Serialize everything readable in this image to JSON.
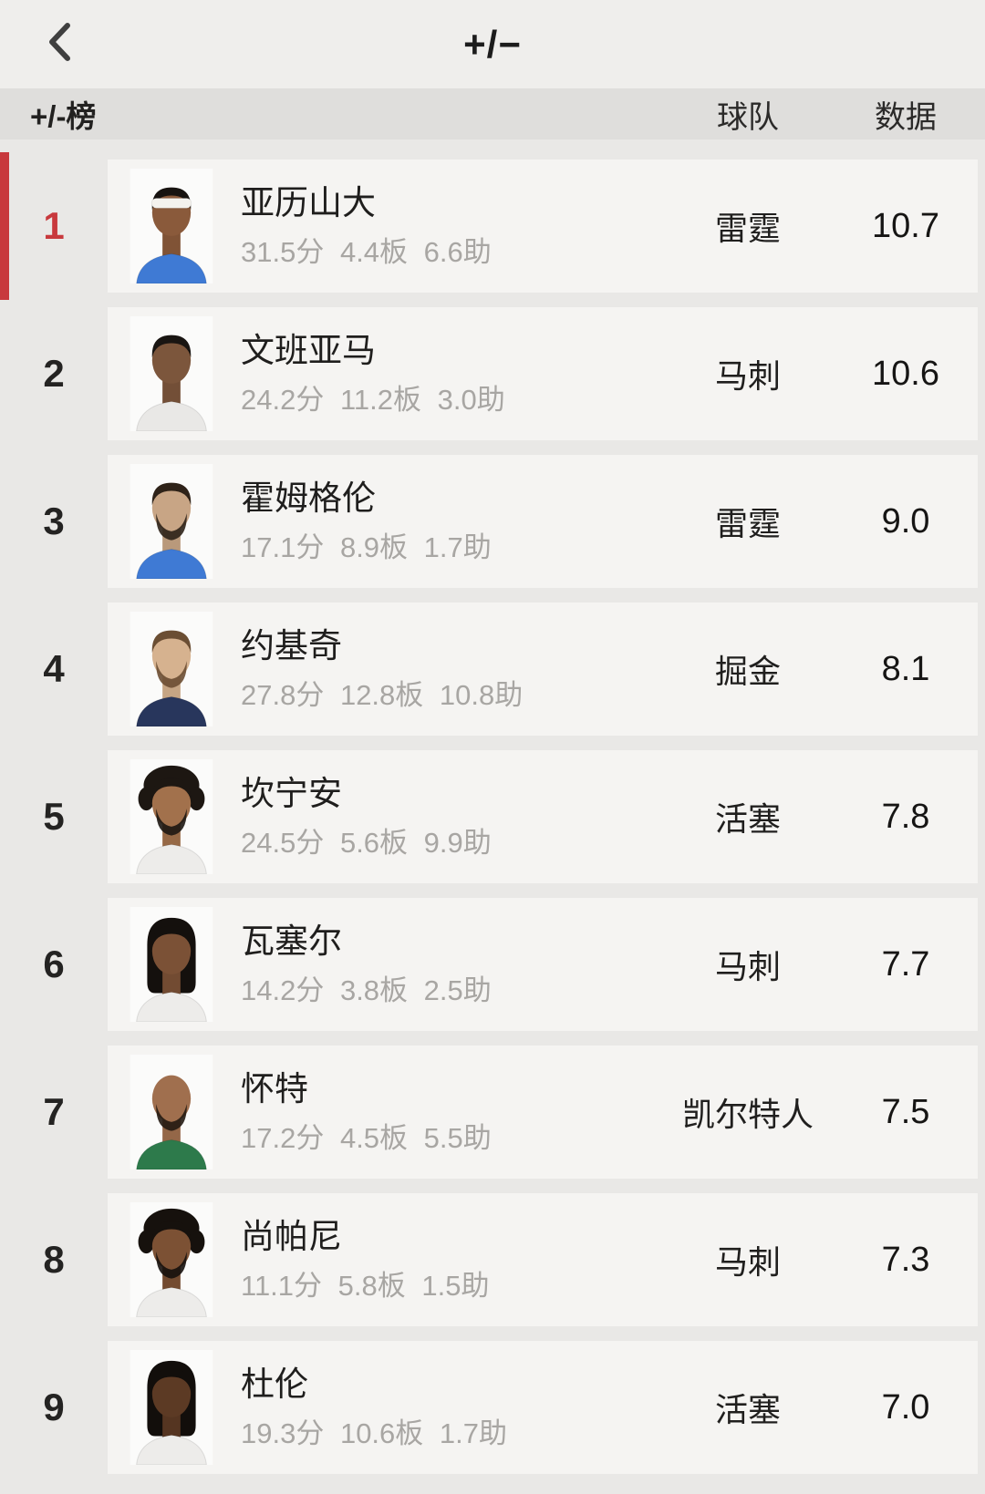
{
  "colors": {
    "accent_red": "#c8393d",
    "appbar_bg": "#efeeec",
    "header_band_bg": "#dfdedc",
    "card_bg": "#f5f4f2",
    "page_bg": "#e9e8e6",
    "stats_gray": "#a8a6a3"
  },
  "nav": {
    "title": "+/−"
  },
  "table": {
    "rank_header": "+/-榜",
    "team_header": "球队",
    "value_header": "数据"
  },
  "rows": [
    {
      "rank": "1",
      "name": "亚历山大",
      "stats": "31.5分 4.4板 6.6助",
      "team": "雷霆",
      "value": "10.7",
      "highlight": true,
      "avatar": {
        "skin": "#8a5a3b",
        "hair": "#171310",
        "jersey": "#3f7ad4",
        "style": "short",
        "headband": true,
        "beard": false
      }
    },
    {
      "rank": "2",
      "name": "文班亚马",
      "stats": "24.2分 11.2板 3.0助",
      "team": "马刺",
      "value": "10.6",
      "highlight": false,
      "avatar": {
        "skin": "#7c563c",
        "hair": "#191512",
        "jersey": "#e9e8e6",
        "style": "short",
        "headband": false,
        "beard": false
      }
    },
    {
      "rank": "3",
      "name": "霍姆格伦",
      "stats": "17.1分 8.9板 1.7助",
      "team": "雷霆",
      "value": "9.0",
      "highlight": false,
      "avatar": {
        "skin": "#c8a585",
        "hair": "#2e2218",
        "jersey": "#3f7ad4",
        "style": "short",
        "headband": false,
        "beard": true
      }
    },
    {
      "rank": "4",
      "name": "约基奇",
      "stats": "27.8分 12.8板 10.8助",
      "team": "掘金",
      "value": "8.1",
      "highlight": false,
      "avatar": {
        "skin": "#d6b28f",
        "hair": "#6b4e33",
        "jersey": "#28365c",
        "style": "short",
        "headband": false,
        "beard": true
      }
    },
    {
      "rank": "5",
      "name": "坎宁安",
      "stats": "24.5分 5.6板 9.9助",
      "team": "活塞",
      "value": "7.8",
      "highlight": false,
      "avatar": {
        "skin": "#a2714c",
        "hair": "#1d1712",
        "jersey": "#edecea",
        "style": "curly",
        "headband": false,
        "beard": true
      }
    },
    {
      "rank": "6",
      "name": "瓦塞尔",
      "stats": "14.2分 3.8板 2.5助",
      "team": "马刺",
      "value": "7.7",
      "highlight": false,
      "avatar": {
        "skin": "#7b5136",
        "hair": "#14100d",
        "jersey": "#edecea",
        "style": "locs",
        "headband": false,
        "beard": false
      }
    },
    {
      "rank": "7",
      "name": "怀特",
      "stats": "17.2分 4.5板 5.5助",
      "team": "凯尔特人",
      "value": "7.5",
      "highlight": false,
      "avatar": {
        "skin": "#a06f4e",
        "hair": "#241a12",
        "jersey": "#2d7a4b",
        "style": "bald",
        "headband": false,
        "beard": true
      }
    },
    {
      "rank": "8",
      "name": "尚帕尼",
      "stats": "11.1分 5.8板 1.5助",
      "team": "马刺",
      "value": "7.3",
      "highlight": false,
      "avatar": {
        "skin": "#7c5134",
        "hair": "#16110d",
        "jersey": "#edecea",
        "style": "curly",
        "headband": false,
        "beard": true
      }
    },
    {
      "rank": "9",
      "name": "杜伦",
      "stats": "19.3分 10.6板 1.7助",
      "team": "活塞",
      "value": "7.0",
      "highlight": false,
      "avatar": {
        "skin": "#5c3a24",
        "hair": "#120e0b",
        "jersey": "#edecea",
        "style": "locs",
        "headband": false,
        "beard": false
      }
    }
  ]
}
